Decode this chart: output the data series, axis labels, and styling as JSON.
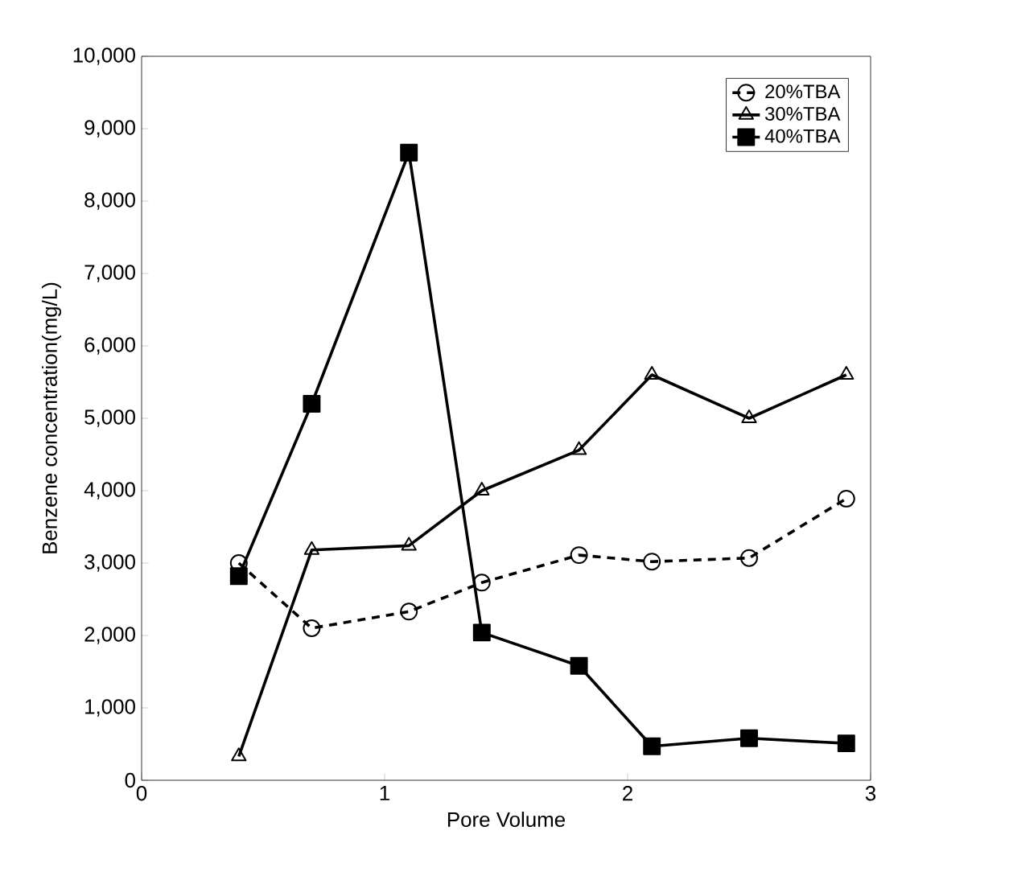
{
  "chart_data": {
    "type": "line",
    "xlabel": "Pore Volume",
    "ylabel": "Benzene concentration(mg/L)",
    "xlim": [
      0,
      3
    ],
    "xticks": [
      0,
      1,
      2,
      3
    ],
    "ylim": [
      0,
      10000
    ],
    "yticks": [
      {
        "value": 0,
        "label": "0"
      },
      {
        "value": 1000,
        "label": "1,000"
      },
      {
        "value": 2000,
        "label": "2,000"
      },
      {
        "value": 3000,
        "label": "3,000"
      },
      {
        "value": 4000,
        "label": "4,000"
      },
      {
        "value": 5000,
        "label": "5,000"
      },
      {
        "value": 6000,
        "label": "6,000"
      },
      {
        "value": 7000,
        "label": "7,000"
      },
      {
        "value": 8000,
        "label": "8,000"
      },
      {
        "value": 9000,
        "label": "9,000"
      },
      {
        "value": 10000,
        "label": "10,000"
      }
    ],
    "x": [
      0.4,
      0.7,
      1.1,
      1.4,
      1.8,
      2.1,
      2.5,
      2.9
    ],
    "grid": false,
    "legend": "top right",
    "series": [
      {
        "name": "20%TBA",
        "color": "#000000",
        "marker": "circle",
        "line_style": "dashed",
        "values": [
          3000,
          2100,
          2330,
          2730,
          3110,
          3020,
          3070,
          3890
        ]
      },
      {
        "name": "30%TBA",
        "color": "#000000",
        "marker": "triangle",
        "line_style": "solid",
        "values": [
          330,
          3180,
          3240,
          4000,
          4560,
          5600,
          5000,
          5600
        ]
      },
      {
        "name": "40%TBA",
        "color": "#000000",
        "marker": "square",
        "line_style": "solid",
        "values": [
          2820,
          5200,
          8670,
          2040,
          1580,
          470,
          580,
          510
        ]
      }
    ]
  }
}
